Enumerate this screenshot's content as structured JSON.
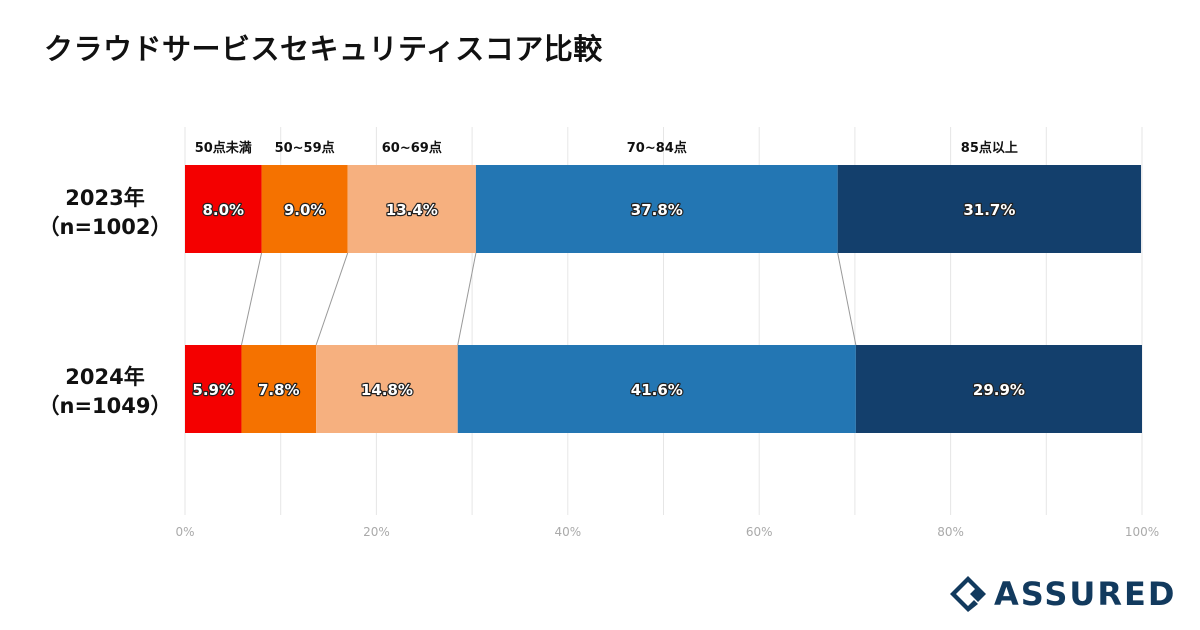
{
  "title": "クラウドサービスセキュリティスコア比較",
  "chart_data": {
    "type": "bar",
    "orientation": "horizontal",
    "stacked": true,
    "normalized_percent": true,
    "categories": [
      "50点未満",
      "50~59点",
      "60~69点",
      "70~84点",
      "85点以上"
    ],
    "colors": [
      "#f40000",
      "#f57200",
      "#f6b07f",
      "#2376b3",
      "#133f6c"
    ],
    "rows": [
      {
        "label_line1": "2023年",
        "label_line2": "（n=1002）",
        "values": [
          8.0,
          9.0,
          13.4,
          37.8,
          31.7
        ]
      },
      {
        "label_line1": "2024年",
        "label_line2": "（n=1049）",
        "values": [
          5.9,
          7.8,
          14.8,
          41.6,
          29.9
        ]
      }
    ],
    "value_labels": [
      [
        "8.0%",
        "9.0%",
        "13.4%",
        "37.8%",
        "31.7%"
      ],
      [
        "5.9%",
        "7.8%",
        "14.8%",
        "41.6%",
        "29.9%"
      ]
    ],
    "xlim": [
      0,
      100
    ],
    "xticks": [
      "0%",
      "20%",
      "40%",
      "60%",
      "80%",
      "100%"
    ],
    "xtick_values": [
      0,
      20,
      40,
      60,
      80,
      100
    ],
    "grid": true,
    "connector_lines": true,
    "legend_position": "top"
  },
  "logo": {
    "text": "ASSURED",
    "color": "#123a5e"
  }
}
